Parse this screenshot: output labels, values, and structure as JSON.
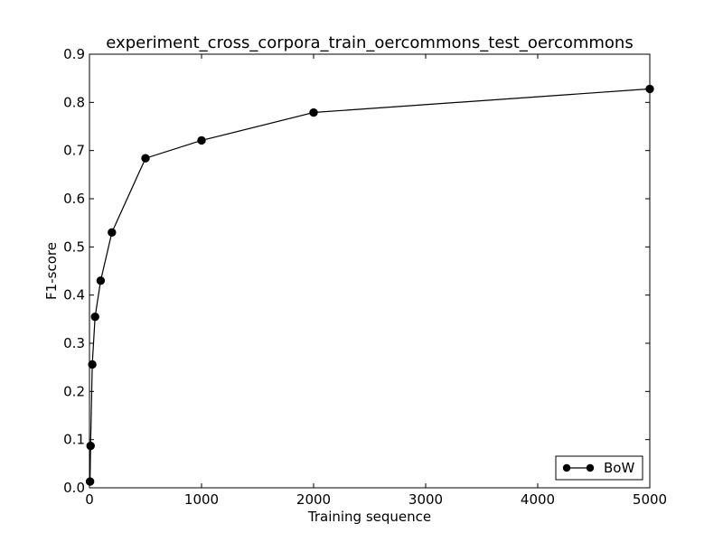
{
  "chart_data": {
    "type": "line",
    "title": "experiment_cross_corpora_train_oercommons_test_oercommons",
    "xlabel": "Training sequence",
    "ylabel": "F1-score",
    "xlim": [
      0,
      5000
    ],
    "ylim": [
      0.0,
      0.9
    ],
    "xticks": [
      "0",
      "1000",
      "2000",
      "3000",
      "4000",
      "5000"
    ],
    "yticks": [
      "0.0",
      "0.1",
      "0.2",
      "0.3",
      "0.4",
      "0.5",
      "0.6",
      "0.7",
      "0.8",
      "0.9"
    ],
    "grid": false,
    "legend_position": "lower-right",
    "series": [
      {
        "name": "BoW",
        "color": "#000000",
        "marker": "circle",
        "x": [
          5,
          10,
          25,
          50,
          100,
          200,
          500,
          1000,
          2000,
          5000
        ],
        "y": [
          0.013,
          0.087,
          0.256,
          0.355,
          0.43,
          0.53,
          0.684,
          0.721,
          0.779,
          0.828
        ]
      }
    ]
  }
}
